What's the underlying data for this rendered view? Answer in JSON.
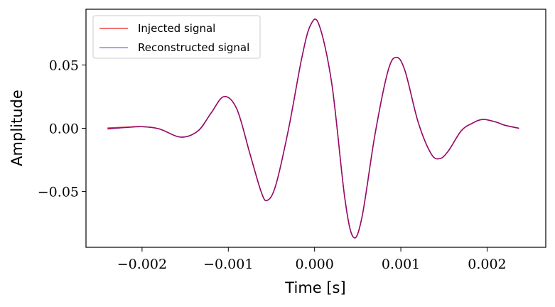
{
  "chart_data": {
    "type": "line",
    "title": "",
    "xlabel": "Time [s]",
    "ylabel": "Amplitude",
    "xlim": [
      -0.00265,
      0.00268
    ],
    "ylim": [
      -0.094,
      0.094
    ],
    "xticks": [
      -0.002,
      -0.001,
      0.0,
      0.001,
      0.002
    ],
    "xtick_labels": [
      "−0.002",
      "−0.001",
      "0.000",
      "0.001",
      "0.002"
    ],
    "yticks": [
      -0.05,
      0.0,
      0.05
    ],
    "ytick_labels": [
      "−0.05",
      "0.00",
      "0.05"
    ],
    "legend_position": "upper-left",
    "series": [
      {
        "name": "Injected signal",
        "color": "#e8231f",
        "x": [
          -0.0024,
          -0.0022,
          -0.002,
          -0.0018,
          -0.00155,
          -0.00135,
          -0.0012,
          -0.00105,
          -0.0009,
          -0.00075,
          -0.00062,
          -0.00055,
          -0.00045,
          -0.0003,
          -0.00015,
          -5e-05,
          5e-05,
          0.0002,
          0.00035,
          0.00045,
          0.00055,
          0.0007,
          0.00085,
          0.00095,
          0.00105,
          0.0012,
          0.00135,
          0.00145,
          0.00155,
          0.0017,
          0.00183,
          0.00195,
          0.0021,
          0.0022,
          0.00237
        ],
        "y": [
          0.0002,
          0.0008,
          0.0013,
          -0.0005,
          -0.007,
          -0.002,
          0.012,
          0.025,
          0.015,
          -0.02,
          -0.05,
          -0.057,
          -0.045,
          0.0,
          0.055,
          0.081,
          0.082,
          0.035,
          -0.055,
          -0.086,
          -0.07,
          -0.005,
          0.045,
          0.056,
          0.045,
          0.005,
          -0.02,
          -0.024,
          -0.018,
          -0.002,
          0.004,
          0.007,
          0.005,
          0.0025,
          0.0
        ]
      },
      {
        "name": "Reconstructed signal",
        "color": "#6f6fef",
        "x": [
          -0.0024,
          -0.0022,
          -0.002,
          -0.0018,
          -0.00155,
          -0.00135,
          -0.0012,
          -0.00105,
          -0.0009,
          -0.00075,
          -0.00062,
          -0.00055,
          -0.00045,
          -0.0003,
          -0.00015,
          -5e-05,
          5e-05,
          0.0002,
          0.00035,
          0.00045,
          0.00055,
          0.0007,
          0.00085,
          0.00095,
          0.00105,
          0.0012,
          0.00135,
          0.00145,
          0.00155,
          0.0017,
          0.00183,
          0.00195,
          0.0021,
          0.0022,
          0.00237
        ],
        "y": [
          -0.0006,
          0.0005,
          0.0012,
          -0.0005,
          -0.007,
          -0.002,
          0.012,
          0.025,
          0.015,
          -0.02,
          -0.05,
          -0.057,
          -0.045,
          0.0,
          0.055,
          0.081,
          0.082,
          0.035,
          -0.055,
          -0.086,
          -0.07,
          -0.005,
          0.045,
          0.056,
          0.045,
          0.005,
          -0.02,
          -0.024,
          -0.018,
          -0.002,
          0.004,
          0.007,
          0.005,
          0.0025,
          0.0
        ]
      }
    ],
    "overlap_color": "#8a0c7a"
  }
}
